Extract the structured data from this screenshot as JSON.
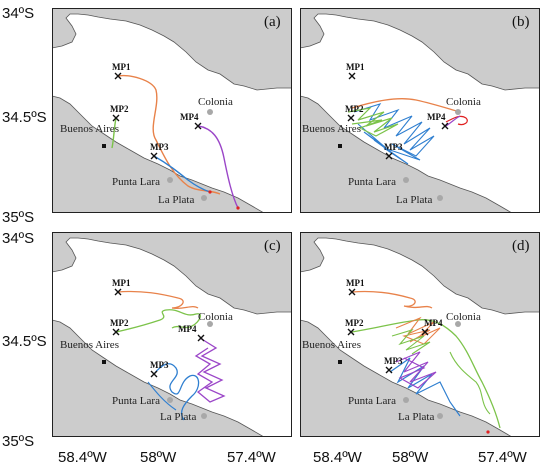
{
  "figure": {
    "y_axis_labels": [
      "34ºS",
      "34.5ºS",
      "35ºS"
    ],
    "x_axis_labels": [
      "58.4ºW",
      "58ºW",
      "57.4ºW"
    ],
    "colors": {
      "land": "#cccccc",
      "water": "#ffffff",
      "orange": "#e8824a",
      "green": "#7cc34a",
      "blue": "#2f7fd0",
      "purple": "#9b46c8",
      "red": "#e02020",
      "marker": "#111111",
      "city": "#a8a8a8"
    }
  },
  "panels": [
    {
      "tag": "(a)",
      "places": {
        "colonia": "Colonia",
        "buenos_aires": "Buenos Aires",
        "punta_lara": "Punta Lara",
        "la_plata": "La Plata"
      },
      "points": {
        "mp1": "MP1",
        "mp2": "MP2",
        "mp3": "MP3",
        "mp4": "MP4"
      }
    },
    {
      "tag": "(b)",
      "places": {
        "colonia": "Colonia",
        "buenos_aires": "Buenos Aires",
        "punta_lara": "Punta Lara",
        "la_plata": "La Plata"
      },
      "points": {
        "mp1": "MP1",
        "mp2": "MP2",
        "mp3": "MP3",
        "mp4": "MP4"
      }
    },
    {
      "tag": "(c)",
      "places": {
        "colonia": "Colonia",
        "buenos_aires": "Buenos Aires",
        "punta_lara": "Punta Lara",
        "la_plata": "La Plata"
      },
      "points": {
        "mp1": "MP1",
        "mp2": "MP2",
        "mp3": "MP3",
        "mp4": "MP4"
      }
    },
    {
      "tag": "(d)",
      "places": {
        "colonia": "Colonia",
        "buenos_aires": "Buenos Aires",
        "punta_lara": "Punta Lara",
        "la_plata": "La Plata"
      },
      "points": {
        "mp1": "MP1",
        "mp2": "MP2",
        "mp3": "MP3",
        "mp4": "MP4"
      }
    }
  ]
}
